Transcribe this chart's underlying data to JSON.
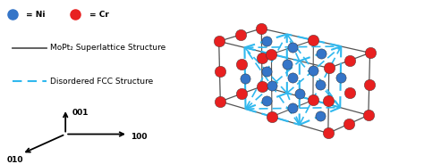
{
  "fig_width": 4.74,
  "fig_height": 1.84,
  "dpi": 100,
  "bg_color": "#ffffff",
  "ni_color": "#3575c8",
  "cr_color": "#e82020",
  "ni_label": "= Ni",
  "cr_label": "= Cr",
  "legend_line1": "MoPt₂ Superlattice Structure",
  "legend_line2": "Disordered FCC Structure",
  "solid_color": "#555555",
  "dashed_color": "#30b8ee",
  "legend_fontsize": 6.5,
  "marker_size_legend": 8,
  "axes_label_fontsize": 6.5
}
